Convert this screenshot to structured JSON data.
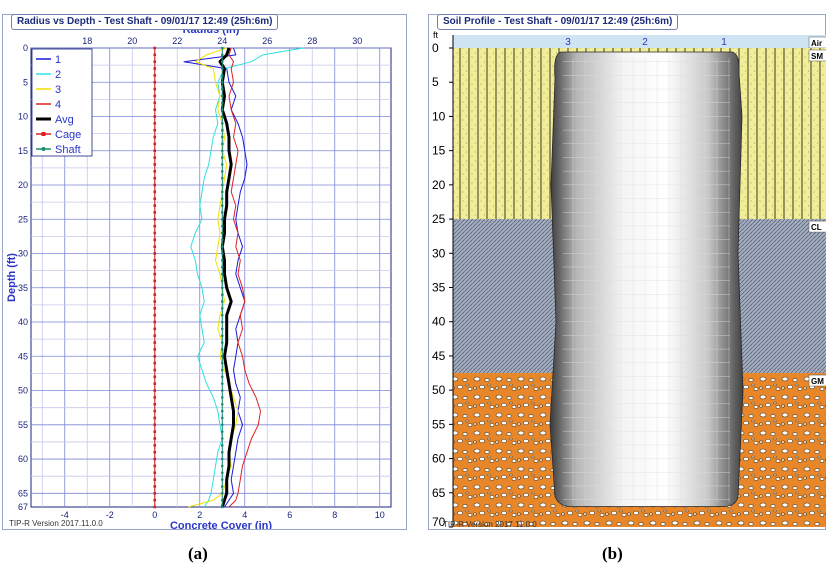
{
  "panel_a": {
    "title": "Radius vs Depth - Test Shaft - 09/01/17 12:49 (25h:6m)",
    "version": "TIP-R Version 2017.11.0.0",
    "caption": "(a)"
  },
  "panel_b": {
    "title": "Soil Profile - Test Shaft - 09/01/17 12:49 (25h:6m)",
    "version": "TIP-R Version 2017.11.0.0",
    "caption": "(b)",
    "depth_unit": "ft",
    "depth_ticks": [
      0,
      5,
      10,
      15,
      20,
      25,
      30,
      35,
      40,
      45,
      50,
      55,
      60,
      65,
      70
    ],
    "depth_range": [
      0,
      70
    ],
    "column_labels": [
      "3",
      "2",
      "1"
    ],
    "layers": [
      {
        "label": "Air",
        "top": -2,
        "bottom": 0,
        "fill": "#cfe4f2"
      },
      {
        "label": "SM",
        "top": 0,
        "bottom": 25,
        "fill": "#f2ee98"
      },
      {
        "label": "CL",
        "top": 25,
        "bottom": 47.5,
        "fill": "#9aa6b8"
      },
      {
        "label": "GM",
        "top": 47.5,
        "bottom": 70,
        "fill": "#e8862a"
      }
    ],
    "shaft_bottom_depth": 67
  },
  "chart_data": [
    {
      "type": "line",
      "x_top_label": "Radius (in)",
      "x_top_ticks": [
        18,
        20,
        22,
        24,
        26,
        28,
        30
      ],
      "x_bottom_label": "Concrete Cover (in)",
      "x_bottom_ticks": [
        -4,
        -2,
        0,
        2,
        4,
        6,
        8,
        10
      ],
      "xlim_cover": [
        -5.5,
        10.5
      ],
      "radius_offset": 21,
      "ylabel": "Depth (ft)",
      "y_ticks": [
        0,
        5,
        10,
        15,
        20,
        25,
        30,
        35,
        40,
        45,
        50,
        55,
        60,
        65,
        67
      ],
      "ylim": [
        0,
        67
      ],
      "y_inverted": true,
      "grid": true,
      "legend_position": "top-left",
      "series": [
        {
          "name": "1",
          "color": "#1a1ad8",
          "width": 1,
          "depth": [
            0,
            1,
            2,
            3,
            5,
            7,
            9,
            11,
            13,
            15,
            17,
            19,
            21,
            23,
            25,
            27,
            29,
            31,
            33,
            35,
            37,
            39,
            41,
            43,
            45,
            47,
            49,
            51,
            53,
            55,
            57,
            59,
            61,
            63,
            65,
            66,
            67
          ],
          "radius": [
            24.5,
            24.6,
            22.3,
            24.2,
            24.3,
            24.6,
            24.4,
            24.7,
            24.9,
            25.0,
            25.1,
            25.0,
            24.8,
            24.7,
            24.6,
            24.7,
            24.9,
            24.7,
            24.6,
            24.8,
            25.0,
            24.8,
            24.6,
            24.7,
            24.6,
            24.5,
            24.6,
            24.8,
            24.7,
            24.9,
            24.7,
            24.6,
            24.5,
            24.4,
            24.5,
            24.3,
            24.1
          ]
        },
        {
          "name": "2",
          "color": "#2ee0e0",
          "width": 1,
          "depth": [
            0,
            1,
            2,
            3,
            5,
            7,
            9,
            11,
            13,
            15,
            17,
            19,
            21,
            23,
            25,
            27,
            29,
            31,
            33,
            35,
            37,
            39,
            41,
            43,
            45,
            47,
            49,
            51,
            53,
            55,
            57,
            59,
            61,
            63,
            65,
            66,
            67
          ],
          "radius": [
            27.6,
            25.8,
            25.3,
            24.1,
            23.8,
            23.9,
            23.7,
            23.8,
            23.6,
            23.5,
            23.4,
            23.2,
            23.1,
            23.0,
            23.1,
            22.8,
            22.6,
            22.8,
            22.9,
            23.1,
            23.2,
            23.0,
            23.1,
            23.2,
            22.9,
            23.1,
            23.3,
            23.6,
            23.8,
            23.9,
            24.0,
            23.8,
            23.7,
            23.6,
            23.5,
            23.4,
            23.2
          ]
        },
        {
          "name": "3",
          "color": "#f0e000",
          "width": 1,
          "depth": [
            0,
            1,
            2,
            3,
            5,
            7,
            9,
            11,
            13,
            15,
            17,
            19,
            21,
            23,
            25,
            27,
            29,
            31,
            33,
            35,
            37,
            39,
            41,
            43,
            45,
            47,
            49,
            51,
            53,
            55,
            57,
            59,
            61,
            63,
            65,
            66,
            67
          ],
          "radius": [
            24.2,
            23.3,
            22.8,
            23.6,
            23.7,
            23.9,
            23.8,
            24.0,
            24.1,
            24.0,
            24.2,
            24.1,
            24.0,
            23.9,
            23.8,
            23.9,
            23.8,
            23.7,
            23.9,
            24.0,
            24.1,
            23.9,
            23.8,
            24.0,
            23.9,
            24.1,
            24.3,
            24.5,
            24.7,
            24.6,
            24.4,
            24.3,
            24.4,
            24.2,
            24.0,
            23.6,
            22.5
          ]
        },
        {
          "name": "4",
          "color": "#e02020",
          "width": 1,
          "depth": [
            0,
            1,
            2,
            3,
            5,
            7,
            9,
            11,
            13,
            15,
            17,
            19,
            21,
            23,
            25,
            27,
            29,
            31,
            33,
            35,
            37,
            39,
            41,
            43,
            45,
            47,
            49,
            51,
            53,
            55,
            57,
            59,
            61,
            63,
            65,
            66,
            67
          ],
          "radius": [
            24.4,
            24.3,
            24.5,
            24.4,
            24.5,
            24.3,
            24.4,
            24.6,
            24.5,
            24.7,
            24.6,
            24.5,
            24.4,
            24.6,
            24.5,
            24.7,
            24.6,
            24.8,
            24.7,
            24.9,
            25.0,
            24.8,
            24.9,
            24.7,
            24.9,
            25.0,
            25.2,
            25.5,
            25.7,
            25.6,
            25.3,
            25.1,
            24.9,
            24.8,
            24.7,
            24.6,
            24.3
          ]
        },
        {
          "name": "Avg",
          "color": "#000000",
          "width": 3,
          "depth": [
            0,
            1,
            2,
            3,
            5,
            7,
            9,
            11,
            13,
            15,
            17,
            19,
            21,
            23,
            25,
            27,
            29,
            31,
            33,
            35,
            37,
            39,
            41,
            43,
            45,
            47,
            49,
            51,
            53,
            55,
            57,
            59,
            61,
            63,
            65,
            66,
            67
          ],
          "radius": [
            24.3,
            24.2,
            23.9,
            24.1,
            24.0,
            24.1,
            24.0,
            24.2,
            24.3,
            24.3,
            24.4,
            24.3,
            24.2,
            24.2,
            24.1,
            24.1,
            24.0,
            24.1,
            24.1,
            24.2,
            24.4,
            24.2,
            24.2,
            24.2,
            24.1,
            24.2,
            24.3,
            24.4,
            24.5,
            24.5,
            24.4,
            24.3,
            24.3,
            24.2,
            24.2,
            24.1,
            24.0
          ]
        },
        {
          "name": "Cage",
          "color": "#d82020",
          "width": 1,
          "marker": "square",
          "depth": [
            0,
            67
          ],
          "radius": [
            21,
            21
          ]
        },
        {
          "name": "Shaft",
          "color": "#1a8a70",
          "width": 1,
          "marker": "circle",
          "depth": [
            0,
            67
          ],
          "radius": [
            24,
            24
          ]
        }
      ]
    }
  ]
}
